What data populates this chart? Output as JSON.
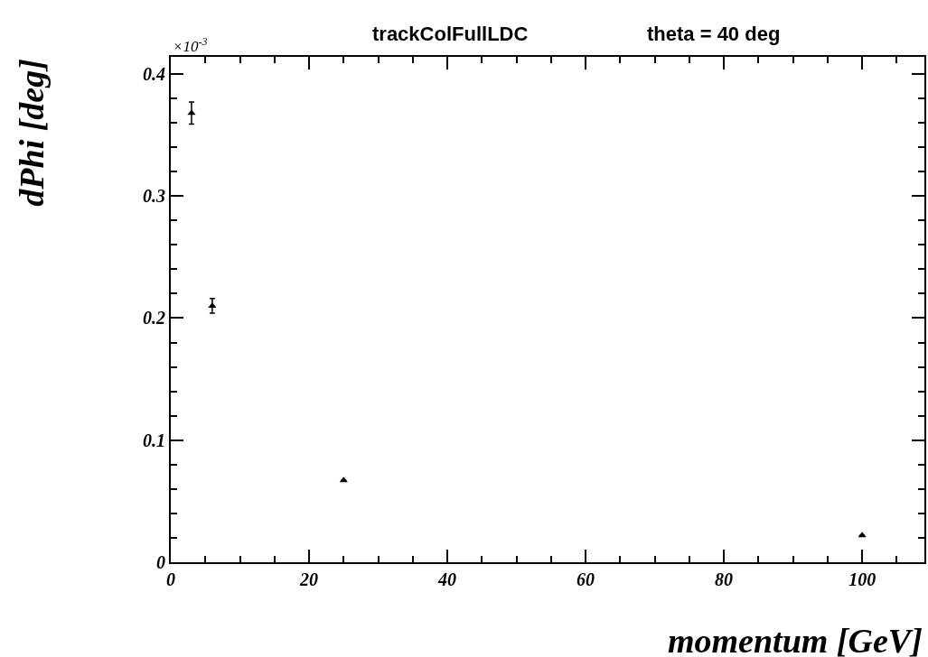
{
  "chart_data": {
    "type": "scatter",
    "title": "trackColFullLDC",
    "xlabel": "momentum [GeV]",
    "ylabel": "dPhi [deg]",
    "annotations": [
      "theta = 40 deg",
      "×10$^{-3}$"
    ],
    "x": [
      3,
      6,
      25,
      100
    ],
    "series": [
      {
        "color": "#000000",
        "values": [
          0.368,
          0.21,
          0.067,
          0.022
        ],
        "errors": [
          0.009,
          0.006,
          null,
          null
        ]
      }
    ],
    "xlim": [
      0,
      109
    ],
    "xticks": [
      0,
      20,
      40,
      60,
      80,
      100
    ],
    "ylim": [
      0,
      0.414
    ],
    "yticks": [
      0,
      0.1,
      0.2,
      0.3,
      0.4
    ],
    "marker": "triangle",
    "legend": false
  }
}
